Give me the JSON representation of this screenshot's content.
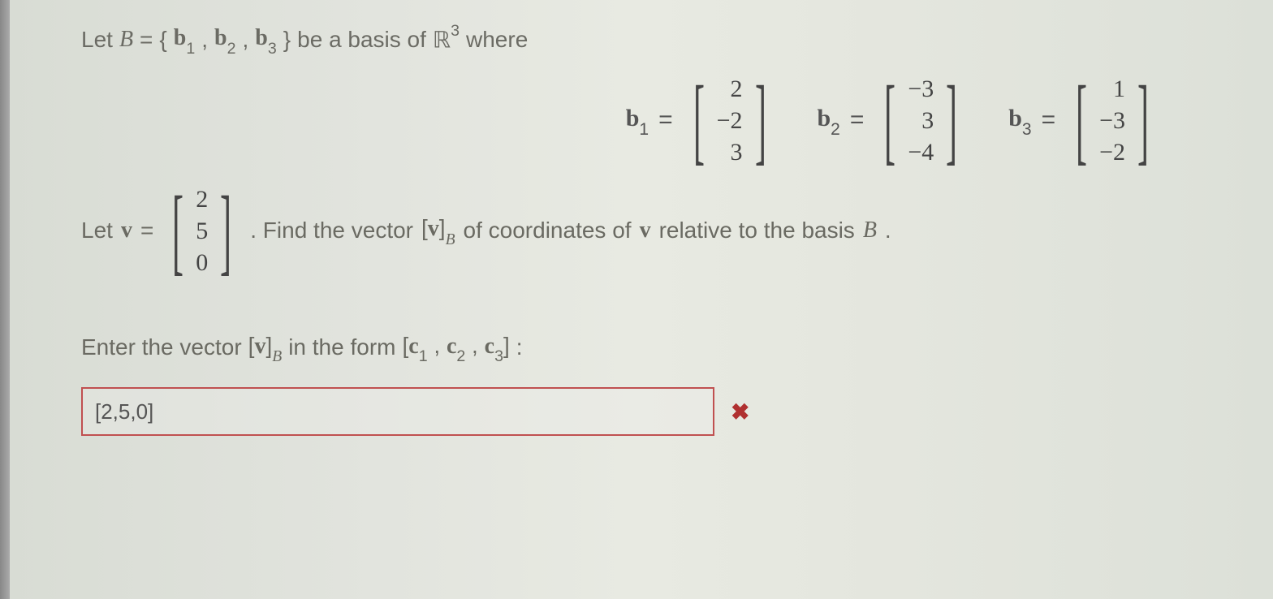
{
  "problem": {
    "intro_let": "Let ",
    "basis_sym": "B",
    "eq": " = ",
    "open_brace": "{",
    "b1": "b",
    "b1_sub": "1",
    "comma": ", ",
    "b2": "b",
    "b2_sub": "2",
    "b3": "b",
    "b3_sub": "3",
    "close_brace": "}",
    "basis_text": " be a basis of ",
    "R": "ℝ",
    "R_sup": "3",
    "where": " where"
  },
  "vectors": {
    "b1": {
      "label": "b",
      "sub": "1",
      "vals": [
        "2",
        "−2",
        "3"
      ]
    },
    "b2": {
      "label": "b",
      "sub": "2",
      "vals": [
        "−3",
        "3",
        "−4"
      ]
    },
    "b3": {
      "label": "b",
      "sub": "3",
      "vals": [
        "1",
        "−3",
        "−2"
      ]
    }
  },
  "v_line": {
    "let": "Let ",
    "v": "v",
    "eq": " = ",
    "vals": [
      "2",
      "5",
      "0"
    ],
    "find_text": ". Find the vector ",
    "v2": "v",
    "sub_B": "B",
    "coords_text": " of coordinates of ",
    "v3": "v",
    "relative_text": " relative to the basis ",
    "B": "B",
    "period": "."
  },
  "enter_line": {
    "enter": "Enter the vector ",
    "v": "v",
    "sub_B": "B",
    "form": " in the form ",
    "c1": "c",
    "c1s": "1",
    "c2": "c",
    "c2s": "2",
    "c3": "c",
    "c3s": "3",
    "colon": " :"
  },
  "answer": {
    "value": "[2,5,0]",
    "status_icon": "✖"
  },
  "style": {
    "text_color": "#5a5a54",
    "input_border": "#c05050",
    "wrong_icon_color": "#b03030",
    "background": "#e2e4dc",
    "font_size_body": 28,
    "font_size_matrix": 30
  }
}
